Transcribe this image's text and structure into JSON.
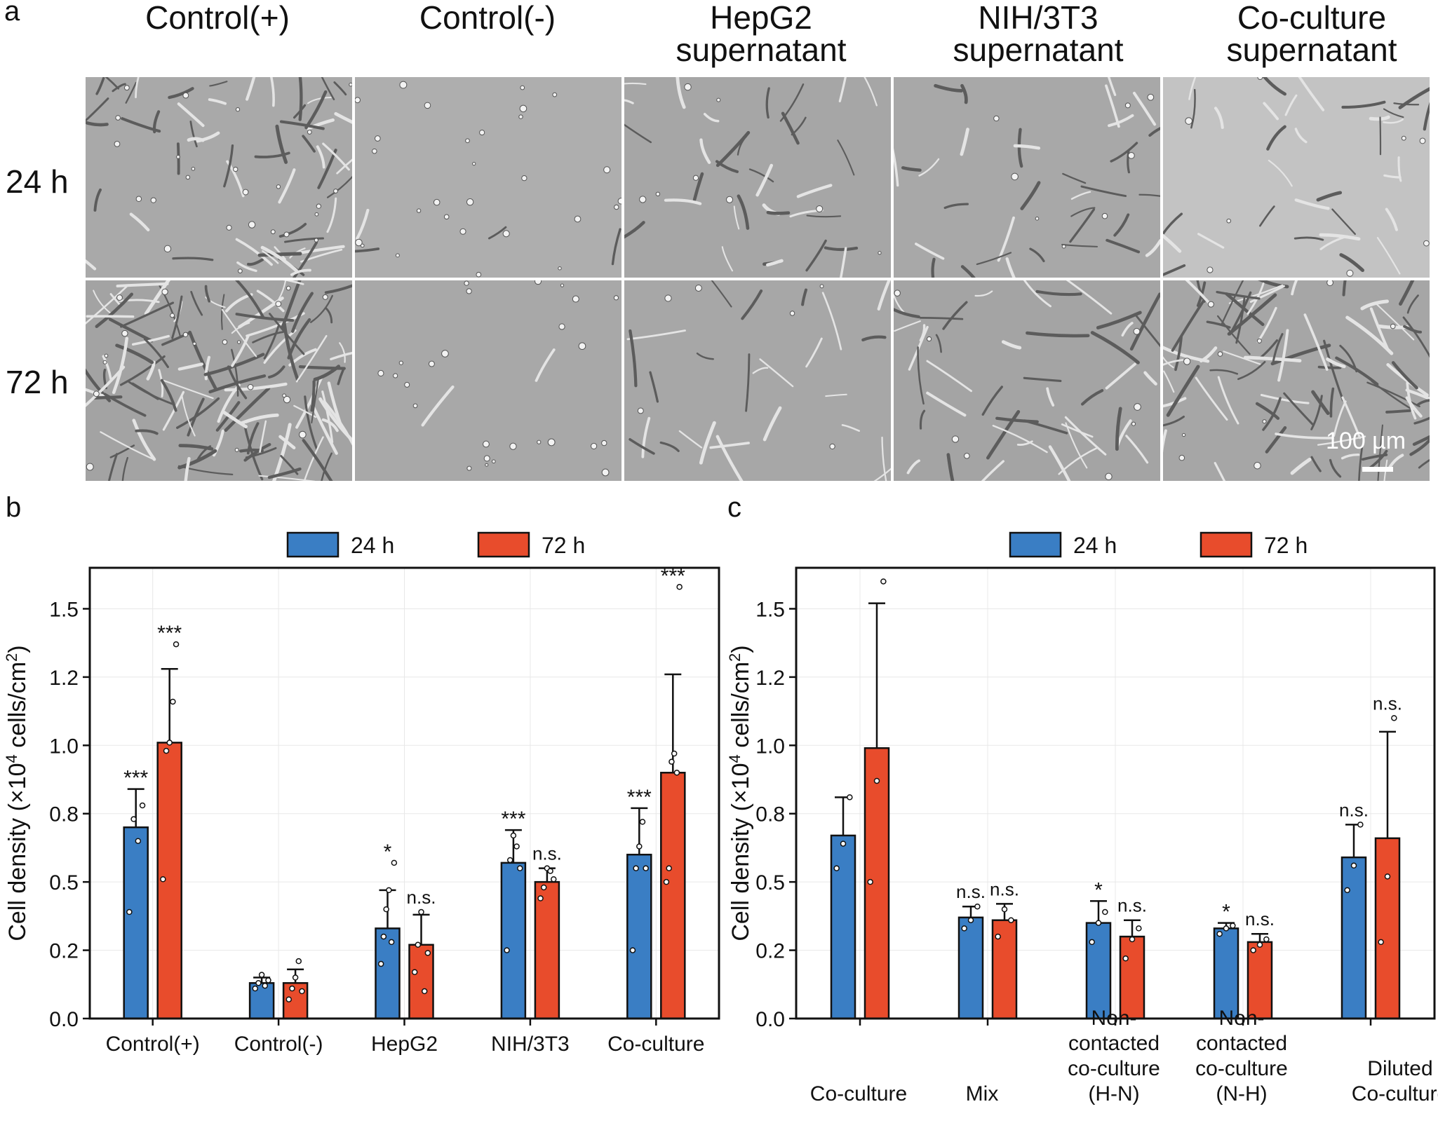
{
  "panel_a": {
    "letter": "a",
    "columns": [
      "Control(+)",
      "Control(-)",
      "HepG2\nsupernatant",
      "NIH/3T3\nsupernatant",
      "Co-culture\nsupernatant"
    ],
    "rows": [
      "24 h",
      "72 h"
    ],
    "scale_bar_label": "100 µm"
  },
  "panel_b": {
    "letter": "b"
  },
  "panel_c": {
    "letter": "c"
  },
  "colors": {
    "blue": "#3a7ec4",
    "red": "#e84c2c",
    "edge": "#111111",
    "grid": "#e8e8e8"
  },
  "chart_data": [
    {
      "type": "bar",
      "panel": "b",
      "categories": [
        "Control(+)",
        "Control(-)",
        "HepG2",
        "NIH/3T3",
        "Co-culture"
      ],
      "ylabel": "Cell density (×10⁴ cells/cm²)",
      "ylim": [
        0,
        1.65
      ],
      "yticks": [
        0.0,
        0.25,
        0.5,
        0.75,
        1.0,
        1.25,
        1.5
      ],
      "ytick_labels": [
        "0.0",
        "0.2",
        "0.5",
        "0.8",
        "1.0",
        "1.2",
        "1.5"
      ],
      "grid": true,
      "legend": {
        "position": "top-center",
        "entries": [
          "24 h",
          "72 h"
        ]
      },
      "series": [
        {
          "name": "24 h",
          "values": [
            0.7,
            0.13,
            0.33,
            0.57,
            0.6
          ],
          "errors": [
            0.14,
            0.02,
            0.14,
            0.12,
            0.17
          ],
          "points": [
            [
              0.39,
              0.73,
              0.65,
              0.78
            ],
            [
              0.11,
              0.13,
              0.16,
              0.12,
              0.14
            ],
            [
              0.2,
              0.3,
              0.4,
              0.47,
              0.28,
              0.57
            ],
            [
              0.25,
              0.58,
              0.67,
              0.63,
              0.55
            ],
            [
              0.25,
              0.55,
              0.63,
              0.72,
              0.55
            ]
          ],
          "annotations": [
            "***",
            "",
            "*",
            "***",
            "***"
          ]
        },
        {
          "name": "72 h",
          "values": [
            1.01,
            0.13,
            0.27,
            0.5,
            0.9
          ],
          "errors": [
            0.27,
            0.05,
            0.11,
            0.05,
            0.36
          ],
          "points": [
            [
              0.51,
              0.98,
              1.01,
              1.16,
              1.37
            ],
            [
              0.07,
              0.11,
              0.15,
              0.21,
              0.1
            ],
            [
              0.17,
              0.27,
              0.39,
              0.1,
              0.24
            ],
            [
              0.44,
              0.48,
              0.55,
              0.54,
              0.51
            ],
            [
              0.5,
              0.55,
              0.94,
              0.97,
              0.9,
              1.58
            ]
          ],
          "annotations": [
            "***",
            "",
            "n.s.",
            "n.s.",
            "***"
          ]
        }
      ]
    },
    {
      "type": "bar",
      "panel": "c",
      "categories": [
        "Co-culture",
        "Mix",
        "Non-\ncontacted\nco-culture\n(H-N)",
        "Non-\ncontacted\nco-culture\n(N-H)",
        "Diluted\nCo-culture"
      ],
      "ylabel": "Cell density (×10⁴ cells/cm²)",
      "ylim": [
        0,
        1.65
      ],
      "yticks": [
        0.0,
        0.25,
        0.5,
        0.75,
        1.0,
        1.25,
        1.5
      ],
      "ytick_labels": [
        "0.0",
        "0.2",
        "0.5",
        "0.8",
        "1.0",
        "1.2",
        "1.5"
      ],
      "grid": true,
      "legend": {
        "position": "top-center",
        "entries": [
          "24 h",
          "72 h"
        ]
      },
      "series": [
        {
          "name": "24 h",
          "values": [
            0.67,
            0.37,
            0.35,
            0.33,
            0.59
          ],
          "errors": [
            0.14,
            0.04,
            0.08,
            0.02,
            0.12
          ],
          "points": [
            [
              0.55,
              0.64,
              0.81
            ],
            [
              0.33,
              0.36,
              0.41
            ],
            [
              0.28,
              0.35,
              0.39
            ],
            [
              0.31,
              0.33,
              0.34
            ],
            [
              0.47,
              0.56,
              0.71
            ]
          ],
          "annotations": [
            "",
            "n.s.",
            "*",
            "*",
            "n.s."
          ]
        },
        {
          "name": "72 h",
          "values": [
            0.99,
            0.36,
            0.3,
            0.28,
            0.66
          ],
          "errors": [
            0.53,
            0.06,
            0.06,
            0.03,
            0.39
          ],
          "points": [
            [
              0.5,
              0.87,
              1.6
            ],
            [
              0.3,
              0.4,
              0.36
            ],
            [
              0.22,
              0.29,
              0.33
            ],
            [
              0.25,
              0.27,
              0.29
            ],
            [
              0.28,
              0.52,
              1.1
            ]
          ],
          "annotations": [
            "",
            "n.s.",
            "n.s.",
            "n.s.",
            "n.s."
          ]
        }
      ]
    }
  ]
}
